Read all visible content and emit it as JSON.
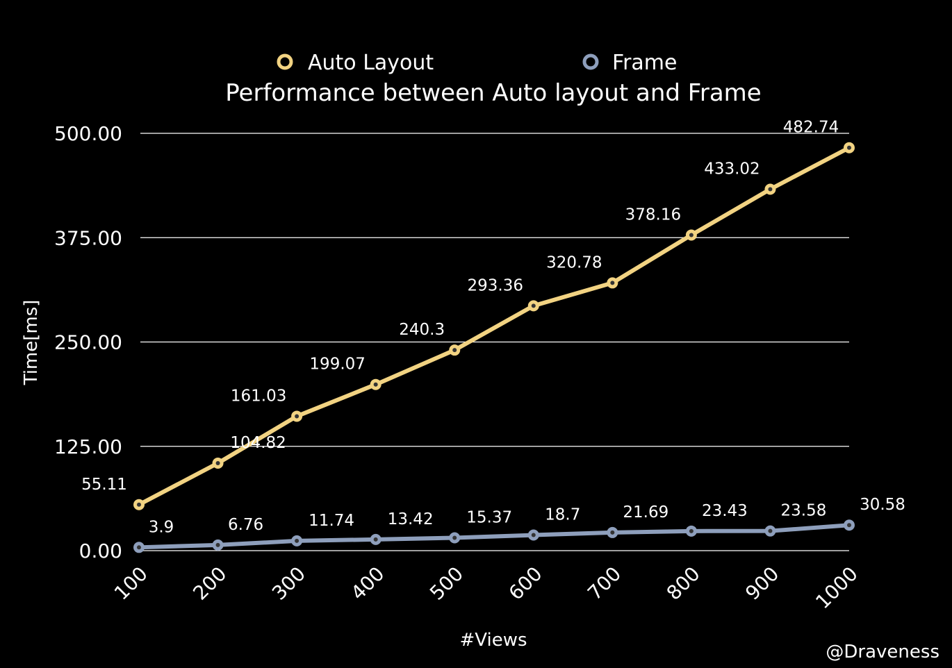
{
  "chart_data": {
    "type": "line",
    "title": "Performance between Auto layout and Frame",
    "xlabel": "#Views",
    "ylabel": "Time[ms]",
    "categories": [
      "100",
      "200",
      "300",
      "400",
      "500",
      "600",
      "700",
      "800",
      "900",
      "1000"
    ],
    "ylim": [
      0,
      500
    ],
    "yticks": [
      "0.00",
      "125.00",
      "250.00",
      "375.00",
      "500.00"
    ],
    "grid": true,
    "legend_position": "top",
    "series": [
      {
        "name": "Auto Layout",
        "color": "#f2d382",
        "values": [
          55.11,
          104.82,
          161.03,
          199.07,
          240.3,
          293.36,
          320.78,
          378.16,
          433.02,
          482.74
        ],
        "labels": [
          "55.11",
          "104.82",
          "161.03",
          "199.07",
          "240.3",
          "293.36",
          "320.78",
          "378.16",
          "433.02",
          "482.74"
        ]
      },
      {
        "name": "Frame",
        "color": "#8e9fbc",
        "values": [
          3.9,
          6.76,
          11.74,
          13.42,
          15.37,
          18.7,
          21.69,
          23.43,
          23.58,
          30.58
        ],
        "labels": [
          "3.9",
          "6.76",
          "11.74",
          "13.42",
          "15.37",
          "18.7",
          "21.69",
          "23.43",
          "23.58",
          "30.58"
        ]
      }
    ]
  },
  "credit": "@Draveness"
}
